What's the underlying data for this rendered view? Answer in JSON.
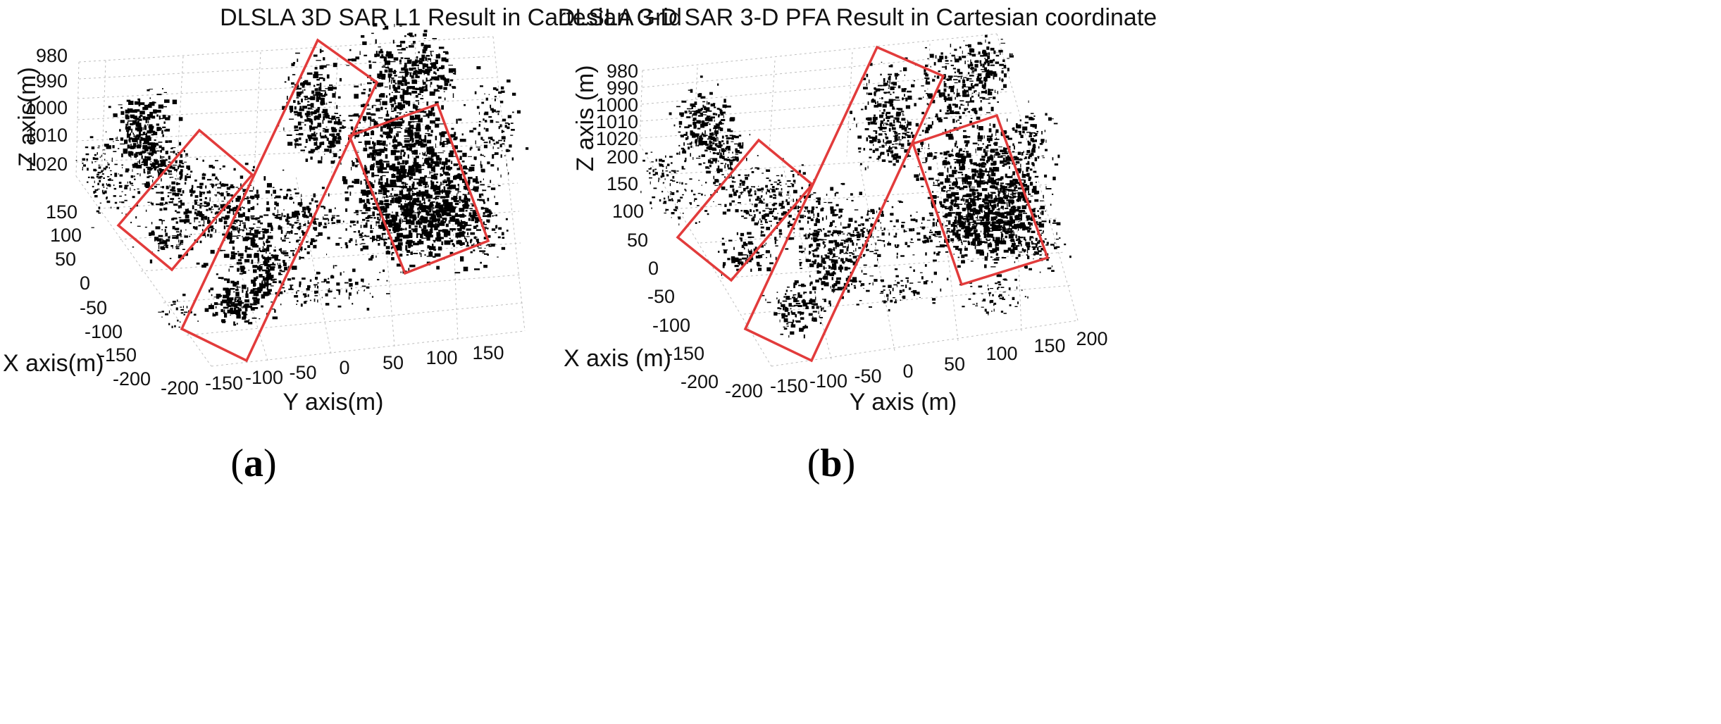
{
  "colors": {
    "region_box": "#e23b3b",
    "points": "#000000",
    "grid": "#bdbdbd"
  },
  "chart_data": [
    {
      "type": "scatter",
      "subtype": "3d-point-cloud",
      "panel": "a",
      "title": "DLSLA 3D SAR L1 Result in Cartesian Grid",
      "xlabel": "X axis(m)",
      "ylabel": "Y axis(m)",
      "zlabel": "Z axis(m)",
      "x_ticks": [
        "150",
        "100",
        "50",
        "0",
        "-50",
        "-100",
        "-150",
        "-200"
      ],
      "y_ticks": [
        "-200",
        "-150",
        "-100",
        "-50",
        "0",
        "50",
        "100",
        "150"
      ],
      "z_ticks": [
        "980",
        "990",
        "1000",
        "1010",
        "1020"
      ],
      "xlim": [
        -200,
        150
      ],
      "ylim": [
        -200,
        175
      ],
      "zlim": [
        980,
        1025
      ],
      "z_reversed": true,
      "grid": true,
      "highlight_boxes": 3
    },
    {
      "type": "scatter",
      "subtype": "3d-point-cloud",
      "panel": "b",
      "title": "DLSLA 3-D SAR 3-D PFA Result in Cartesian coordinate",
      "xlabel": "X axis (m)",
      "ylabel": "Y axis (m)",
      "zlabel": "Z axis (m)",
      "x_ticks": [
        "200",
        "150",
        "100",
        "50",
        "0",
        "-50",
        "-100",
        "-150",
        "-200"
      ],
      "y_ticks": [
        "-200",
        "-150",
        "-100",
        "-50",
        "0",
        "50",
        "100",
        "150",
        "200"
      ],
      "z_ticks": [
        "980",
        "990",
        "1000",
        "1010",
        "1020"
      ],
      "xlim": [
        -200,
        200
      ],
      "ylim": [
        -200,
        200
      ],
      "zlim": [
        980,
        1025
      ],
      "z_reversed": true,
      "grid": true,
      "highlight_boxes": 3
    }
  ],
  "panel_labels": [
    {
      "open": "(",
      "letter": "a",
      "close": ")"
    },
    {
      "open": "(",
      "letter": "b",
      "close": ")"
    }
  ]
}
